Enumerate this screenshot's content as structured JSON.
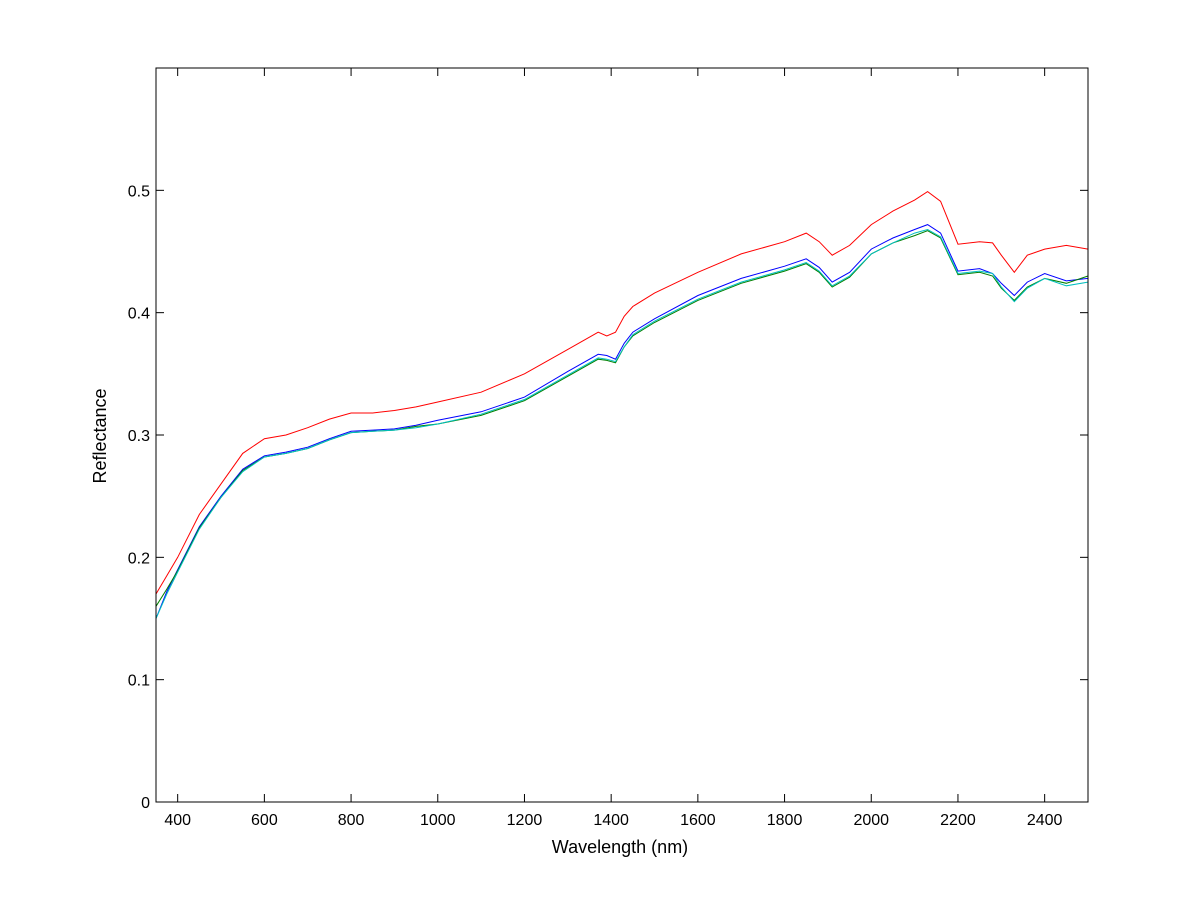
{
  "chart_data": {
    "type": "line",
    "title": "",
    "xlabel": "Wavelength (nm)",
    "ylabel": "Reflectance",
    "xlim": [
      350,
      2500
    ],
    "ylim": [
      0,
      0.6
    ],
    "xticks": [
      400,
      600,
      800,
      1000,
      1200,
      1400,
      1600,
      1800,
      2000,
      2200,
      2400
    ],
    "xtick_labels": [
      "400",
      "600",
      "800",
      "1000",
      "1200",
      "1400",
      "1600",
      "1800",
      "2000",
      "2200",
      "2400"
    ],
    "yticks": [
      0,
      0.1,
      0.2,
      0.3,
      0.4,
      0.5
    ],
    "ytick_labels": [
      "0",
      "0.1",
      "0.2",
      "0.3",
      "0.4",
      "0.5"
    ],
    "grid": false,
    "legend": "none",
    "series": [
      {
        "color": "#ff0000",
        "x": [
          350,
          375,
          400,
          450,
          500,
          550,
          600,
          650,
          700,
          750,
          800,
          850,
          900,
          950,
          1000,
          1100,
          1200,
          1300,
          1370,
          1390,
          1410,
          1430,
          1450,
          1500,
          1600,
          1700,
          1800,
          1850,
          1880,
          1910,
          1950,
          2000,
          2050,
          2100,
          2130,
          2160,
          2200,
          2250,
          2280,
          2300,
          2330,
          2360,
          2400,
          2450,
          2500
        ],
        "y": [
          0.17,
          0.185,
          0.2,
          0.235,
          0.26,
          0.285,
          0.297,
          0.3,
          0.306,
          0.313,
          0.318,
          0.318,
          0.32,
          0.323,
          0.327,
          0.335,
          0.35,
          0.37,
          0.384,
          0.381,
          0.384,
          0.397,
          0.405,
          0.416,
          0.433,
          0.448,
          0.458,
          0.465,
          0.458,
          0.447,
          0.455,
          0.472,
          0.483,
          0.492,
          0.499,
          0.491,
          0.456,
          0.458,
          0.457,
          0.447,
          0.433,
          0.447,
          0.452,
          0.455,
          0.452
        ]
      },
      {
        "color": "#0000ff",
        "x": [
          350,
          375,
          400,
          450,
          500,
          550,
          600,
          650,
          700,
          750,
          800,
          850,
          900,
          950,
          1000,
          1100,
          1200,
          1300,
          1370,
          1390,
          1410,
          1430,
          1450,
          1500,
          1600,
          1700,
          1800,
          1850,
          1880,
          1910,
          1950,
          2000,
          2050,
          2100,
          2130,
          2160,
          2200,
          2250,
          2280,
          2300,
          2330,
          2360,
          2400,
          2450,
          2500
        ],
        "y": [
          0.15,
          0.172,
          0.19,
          0.225,
          0.25,
          0.272,
          0.283,
          0.286,
          0.29,
          0.297,
          0.303,
          0.304,
          0.305,
          0.308,
          0.312,
          0.319,
          0.331,
          0.352,
          0.366,
          0.365,
          0.362,
          0.375,
          0.384,
          0.395,
          0.414,
          0.428,
          0.438,
          0.444,
          0.437,
          0.425,
          0.433,
          0.452,
          0.461,
          0.468,
          0.472,
          0.465,
          0.434,
          0.436,
          0.432,
          0.424,
          0.414,
          0.425,
          0.432,
          0.426,
          0.428
        ]
      },
      {
        "color": "#008000",
        "x": [
          350,
          375,
          400,
          450,
          500,
          550,
          600,
          650,
          700,
          750,
          800,
          850,
          900,
          950,
          1000,
          1100,
          1200,
          1300,
          1370,
          1390,
          1410,
          1430,
          1450,
          1500,
          1600,
          1700,
          1800,
          1850,
          1880,
          1910,
          1950,
          2000,
          2050,
          2100,
          2130,
          2160,
          2200,
          2250,
          2280,
          2300,
          2330,
          2360,
          2400,
          2450,
          2500
        ],
        "y": [
          0.16,
          0.174,
          0.189,
          0.224,
          0.249,
          0.271,
          0.282,
          0.285,
          0.289,
          0.296,
          0.302,
          0.303,
          0.304,
          0.307,
          0.309,
          0.316,
          0.328,
          0.348,
          0.362,
          0.361,
          0.359,
          0.372,
          0.381,
          0.392,
          0.41,
          0.424,
          0.434,
          0.44,
          0.433,
          0.421,
          0.429,
          0.448,
          0.457,
          0.463,
          0.467,
          0.461,
          0.431,
          0.433,
          0.43,
          0.42,
          0.41,
          0.421,
          0.428,
          0.424,
          0.43
        ]
      },
      {
        "color": "#00bfbf",
        "x": [
          350,
          375,
          400,
          450,
          500,
          550,
          600,
          650,
          700,
          750,
          800,
          850,
          900,
          950,
          1000,
          1100,
          1200,
          1300,
          1370,
          1390,
          1410,
          1430,
          1450,
          1500,
          1600,
          1700,
          1800,
          1850,
          1880,
          1910,
          1950,
          2000,
          2050,
          2100,
          2130,
          2160,
          2200,
          2250,
          2280,
          2300,
          2330,
          2360,
          2400,
          2450,
          2500
        ],
        "y": [
          0.15,
          0.17,
          0.188,
          0.223,
          0.249,
          0.27,
          0.282,
          0.285,
          0.289,
          0.296,
          0.302,
          0.303,
          0.304,
          0.306,
          0.309,
          0.317,
          0.329,
          0.349,
          0.363,
          0.362,
          0.36,
          0.372,
          0.382,
          0.393,
          0.411,
          0.425,
          0.435,
          0.441,
          0.434,
          0.422,
          0.43,
          0.448,
          0.457,
          0.465,
          0.468,
          0.462,
          0.432,
          0.434,
          0.432,
          0.421,
          0.409,
          0.42,
          0.428,
          0.422,
          0.425
        ]
      }
    ]
  }
}
